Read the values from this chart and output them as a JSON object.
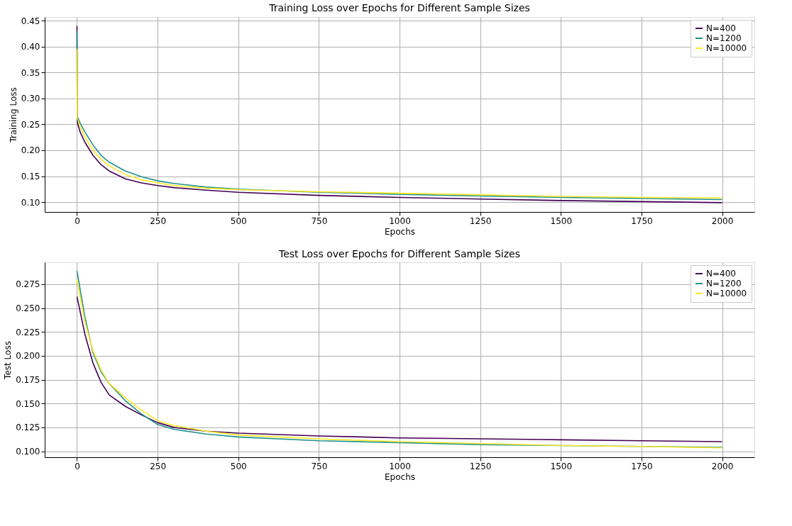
{
  "chart_data": [
    {
      "type": "line",
      "title": "Training Loss over Epochs for Different Sample Sizes",
      "xlabel": "Epochs",
      "ylabel": "Training Loss",
      "x": [
        0,
        1,
        5,
        10,
        25,
        50,
        75,
        100,
        150,
        200,
        250,
        300,
        400,
        500,
        750,
        1000,
        1250,
        1500,
        1750,
        2000
      ],
      "series": [
        {
          "name": "N=400",
          "color": "#440154",
          "values": [
            0.44,
            0.255,
            0.245,
            0.235,
            0.215,
            0.19,
            0.172,
            0.16,
            0.145,
            0.137,
            0.132,
            0.128,
            0.123,
            0.119,
            0.113,
            0.109,
            0.106,
            0.103,
            0.101,
            0.099
          ]
        },
        {
          "name": "N=1200",
          "color": "#21918c",
          "values": [
            0.43,
            0.265,
            0.26,
            0.252,
            0.235,
            0.21,
            0.19,
            0.177,
            0.16,
            0.149,
            0.141,
            0.136,
            0.129,
            0.125,
            0.119,
            0.115,
            0.112,
            0.109,
            0.107,
            0.105
          ]
        },
        {
          "name": "N=10000",
          "color": "#fde725",
          "values": [
            0.395,
            0.262,
            0.255,
            0.245,
            0.225,
            0.2,
            0.182,
            0.17,
            0.153,
            0.143,
            0.137,
            0.132,
            0.127,
            0.124,
            0.12,
            0.117,
            0.114,
            0.111,
            0.109,
            0.108
          ]
        }
      ],
      "xlim": [
        -100,
        2100
      ],
      "xticks": [
        0,
        250,
        500,
        750,
        1000,
        1250,
        1500,
        1750,
        2000
      ],
      "ylim": [
        0.081,
        0.457
      ],
      "yticks": [
        {
          "value": 0.1,
          "label": "0.10"
        },
        {
          "value": 0.15,
          "label": "0.15"
        },
        {
          "value": 0.2,
          "label": "0.20"
        },
        {
          "value": 0.25,
          "label": "0.25"
        },
        {
          "value": 0.3,
          "label": "0.30"
        },
        {
          "value": 0.35,
          "label": "0.35"
        },
        {
          "value": 0.4,
          "label": "0.40"
        },
        {
          "value": 0.45,
          "label": "0.45"
        }
      ],
      "grid": true,
      "legend": "top right",
      "line_style": "solid"
    },
    {
      "type": "line",
      "title": "Test Loss over Epochs for Different Sample Sizes",
      "xlabel": "Epochs",
      "ylabel": "Test Loss",
      "x": [
        0,
        25,
        50,
        75,
        100,
        150,
        200,
        250,
        300,
        400,
        500,
        750,
        1000,
        1250,
        1500,
        1750,
        2000
      ],
      "series": [
        {
          "name": "N=400",
          "color": "#440154",
          "values": [
            0.262,
            0.222,
            0.192,
            0.172,
            0.159,
            0.147,
            0.138,
            0.13,
            0.125,
            0.121,
            0.119,
            0.116,
            0.114,
            0.113,
            0.112,
            0.111,
            0.11
          ]
        },
        {
          "name": "N=1200",
          "color": "#21918c",
          "values": [
            0.289,
            0.24,
            0.203,
            0.183,
            0.171,
            0.153,
            0.139,
            0.128,
            0.123,
            0.118,
            0.115,
            0.111,
            0.109,
            0.107,
            0.106,
            0.105,
            0.104
          ]
        },
        {
          "name": "N=10000",
          "color": "#fde725",
          "values": [
            0.28,
            0.235,
            0.205,
            0.185,
            0.171,
            0.156,
            0.143,
            0.132,
            0.127,
            0.121,
            0.117,
            0.113,
            0.11,
            0.108,
            0.106,
            0.105,
            0.1035
          ]
        }
      ],
      "xlim": [
        -100,
        2100
      ],
      "xticks": [
        0,
        250,
        500,
        750,
        1000,
        1250,
        1500,
        1750,
        2000
      ],
      "ylim": [
        0.0937,
        0.298
      ],
      "yticks": [
        {
          "value": 0.1,
          "label": "0.100"
        },
        {
          "value": 0.125,
          "label": "0.125"
        },
        {
          "value": 0.15,
          "label": "0.150"
        },
        {
          "value": 0.175,
          "label": "0.175"
        },
        {
          "value": 0.2,
          "label": "0.200"
        },
        {
          "value": 0.225,
          "label": "0.225"
        },
        {
          "value": 0.25,
          "label": "0.250"
        },
        {
          "value": 0.275,
          "label": "0.275"
        }
      ],
      "grid": true,
      "legend": "top right",
      "line_style": "solid"
    }
  ]
}
